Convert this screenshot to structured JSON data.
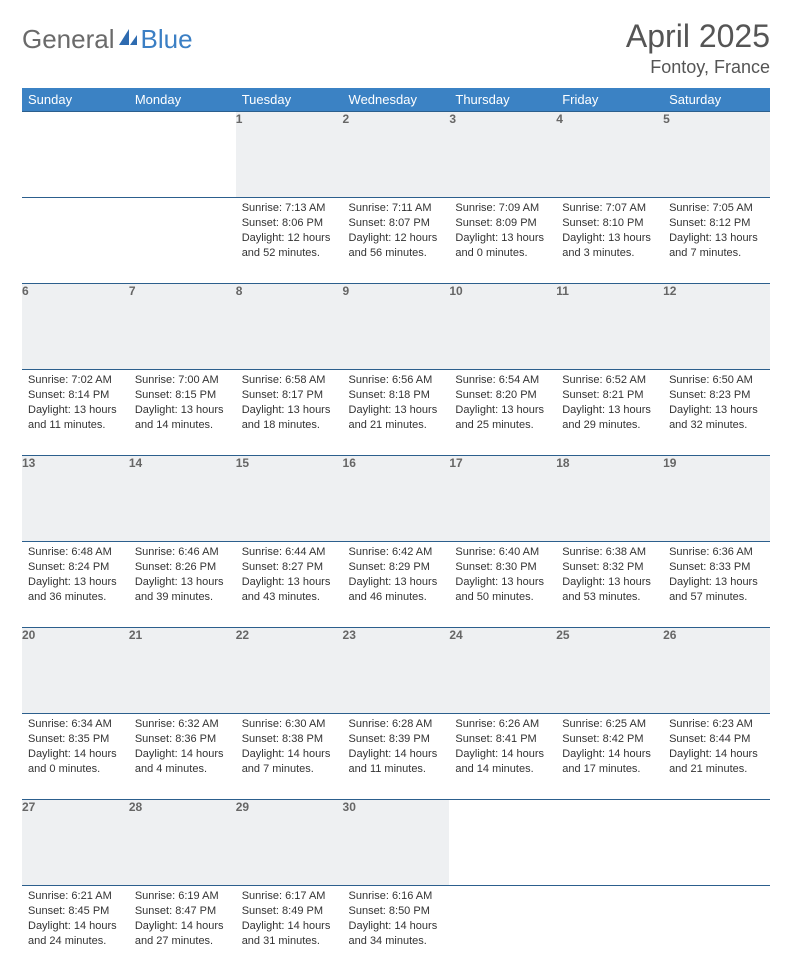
{
  "brand": {
    "text_general": "General",
    "text_blue": "Blue"
  },
  "header": {
    "month_title": "April 2025",
    "location": "Fontoy, France"
  },
  "colors": {
    "header_bg": "#3b82c4",
    "header_text": "#ffffff",
    "row_border": "#2c5f8d",
    "daynum_bg": "#eef0f2",
    "daynum_text": "#666666",
    "body_text": "#333333",
    "logo_gray": "#6a6a6a",
    "logo_blue": "#3b7fc4"
  },
  "weekdays": [
    "Sunday",
    "Monday",
    "Tuesday",
    "Wednesday",
    "Thursday",
    "Friday",
    "Saturday"
  ],
  "weeks": [
    [
      null,
      null,
      {
        "n": "1",
        "sunrise": "Sunrise: 7:13 AM",
        "sunset": "Sunset: 8:06 PM",
        "daylight": "Daylight: 12 hours and 52 minutes."
      },
      {
        "n": "2",
        "sunrise": "Sunrise: 7:11 AM",
        "sunset": "Sunset: 8:07 PM",
        "daylight": "Daylight: 12 hours and 56 minutes."
      },
      {
        "n": "3",
        "sunrise": "Sunrise: 7:09 AM",
        "sunset": "Sunset: 8:09 PM",
        "daylight": "Daylight: 13 hours and 0 minutes."
      },
      {
        "n": "4",
        "sunrise": "Sunrise: 7:07 AM",
        "sunset": "Sunset: 8:10 PM",
        "daylight": "Daylight: 13 hours and 3 minutes."
      },
      {
        "n": "5",
        "sunrise": "Sunrise: 7:05 AM",
        "sunset": "Sunset: 8:12 PM",
        "daylight": "Daylight: 13 hours and 7 minutes."
      }
    ],
    [
      {
        "n": "6",
        "sunrise": "Sunrise: 7:02 AM",
        "sunset": "Sunset: 8:14 PM",
        "daylight": "Daylight: 13 hours and 11 minutes."
      },
      {
        "n": "7",
        "sunrise": "Sunrise: 7:00 AM",
        "sunset": "Sunset: 8:15 PM",
        "daylight": "Daylight: 13 hours and 14 minutes."
      },
      {
        "n": "8",
        "sunrise": "Sunrise: 6:58 AM",
        "sunset": "Sunset: 8:17 PM",
        "daylight": "Daylight: 13 hours and 18 minutes."
      },
      {
        "n": "9",
        "sunrise": "Sunrise: 6:56 AM",
        "sunset": "Sunset: 8:18 PM",
        "daylight": "Daylight: 13 hours and 21 minutes."
      },
      {
        "n": "10",
        "sunrise": "Sunrise: 6:54 AM",
        "sunset": "Sunset: 8:20 PM",
        "daylight": "Daylight: 13 hours and 25 minutes."
      },
      {
        "n": "11",
        "sunrise": "Sunrise: 6:52 AM",
        "sunset": "Sunset: 8:21 PM",
        "daylight": "Daylight: 13 hours and 29 minutes."
      },
      {
        "n": "12",
        "sunrise": "Sunrise: 6:50 AM",
        "sunset": "Sunset: 8:23 PM",
        "daylight": "Daylight: 13 hours and 32 minutes."
      }
    ],
    [
      {
        "n": "13",
        "sunrise": "Sunrise: 6:48 AM",
        "sunset": "Sunset: 8:24 PM",
        "daylight": "Daylight: 13 hours and 36 minutes."
      },
      {
        "n": "14",
        "sunrise": "Sunrise: 6:46 AM",
        "sunset": "Sunset: 8:26 PM",
        "daylight": "Daylight: 13 hours and 39 minutes."
      },
      {
        "n": "15",
        "sunrise": "Sunrise: 6:44 AM",
        "sunset": "Sunset: 8:27 PM",
        "daylight": "Daylight: 13 hours and 43 minutes."
      },
      {
        "n": "16",
        "sunrise": "Sunrise: 6:42 AM",
        "sunset": "Sunset: 8:29 PM",
        "daylight": "Daylight: 13 hours and 46 minutes."
      },
      {
        "n": "17",
        "sunrise": "Sunrise: 6:40 AM",
        "sunset": "Sunset: 8:30 PM",
        "daylight": "Daylight: 13 hours and 50 minutes."
      },
      {
        "n": "18",
        "sunrise": "Sunrise: 6:38 AM",
        "sunset": "Sunset: 8:32 PM",
        "daylight": "Daylight: 13 hours and 53 minutes."
      },
      {
        "n": "19",
        "sunrise": "Sunrise: 6:36 AM",
        "sunset": "Sunset: 8:33 PM",
        "daylight": "Daylight: 13 hours and 57 minutes."
      }
    ],
    [
      {
        "n": "20",
        "sunrise": "Sunrise: 6:34 AM",
        "sunset": "Sunset: 8:35 PM",
        "daylight": "Daylight: 14 hours and 0 minutes."
      },
      {
        "n": "21",
        "sunrise": "Sunrise: 6:32 AM",
        "sunset": "Sunset: 8:36 PM",
        "daylight": "Daylight: 14 hours and 4 minutes."
      },
      {
        "n": "22",
        "sunrise": "Sunrise: 6:30 AM",
        "sunset": "Sunset: 8:38 PM",
        "daylight": "Daylight: 14 hours and 7 minutes."
      },
      {
        "n": "23",
        "sunrise": "Sunrise: 6:28 AM",
        "sunset": "Sunset: 8:39 PM",
        "daylight": "Daylight: 14 hours and 11 minutes."
      },
      {
        "n": "24",
        "sunrise": "Sunrise: 6:26 AM",
        "sunset": "Sunset: 8:41 PM",
        "daylight": "Daylight: 14 hours and 14 minutes."
      },
      {
        "n": "25",
        "sunrise": "Sunrise: 6:25 AM",
        "sunset": "Sunset: 8:42 PM",
        "daylight": "Daylight: 14 hours and 17 minutes."
      },
      {
        "n": "26",
        "sunrise": "Sunrise: 6:23 AM",
        "sunset": "Sunset: 8:44 PM",
        "daylight": "Daylight: 14 hours and 21 minutes."
      }
    ],
    [
      {
        "n": "27",
        "sunrise": "Sunrise: 6:21 AM",
        "sunset": "Sunset: 8:45 PM",
        "daylight": "Daylight: 14 hours and 24 minutes."
      },
      {
        "n": "28",
        "sunrise": "Sunrise: 6:19 AM",
        "sunset": "Sunset: 8:47 PM",
        "daylight": "Daylight: 14 hours and 27 minutes."
      },
      {
        "n": "29",
        "sunrise": "Sunrise: 6:17 AM",
        "sunset": "Sunset: 8:49 PM",
        "daylight": "Daylight: 14 hours and 31 minutes."
      },
      {
        "n": "30",
        "sunrise": "Sunrise: 6:16 AM",
        "sunset": "Sunset: 8:50 PM",
        "daylight": "Daylight: 14 hours and 34 minutes."
      },
      null,
      null,
      null
    ]
  ]
}
